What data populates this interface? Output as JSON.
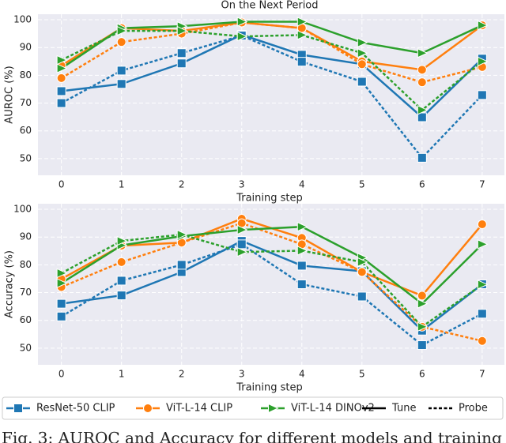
{
  "chart_data": [
    {
      "type": "line",
      "title": "On the Next Period",
      "xlabel": "Training step",
      "ylabel": "AUROC (%)",
      "x": [
        0,
        1,
        2,
        3,
        4,
        5,
        6,
        7
      ],
      "xlim": [
        -0.39,
        7.37
      ],
      "xticks": [
        0,
        1,
        2,
        3,
        4,
        5,
        6,
        7
      ],
      "ylim": [
        44,
        102
      ],
      "yticks": [
        50,
        60,
        70,
        80,
        90,
        100
      ],
      "grid": true,
      "series": [
        {
          "name": "ResNet-50 CLIP",
          "color": "#1f77b4",
          "marker": "square",
          "linestyle": "solid",
          "values": [
            74.3,
            76.9,
            84.3,
            94.6,
            87.4,
            84,
            64.9,
            86
          ]
        },
        {
          "name": "ResNet-50 CLIP",
          "color": "#1f77b4",
          "marker": "square",
          "linestyle": "dashed",
          "values": [
            70,
            81.7,
            88,
            94.3,
            84.9,
            77.7,
            50.3,
            72.9
          ]
        },
        {
          "name": "ViT-L-14 CLIP",
          "color": "#ff7f0e",
          "marker": "circle",
          "linestyle": "solid",
          "values": [
            83.5,
            97,
            96,
            99,
            97,
            85,
            82,
            98
          ]
        },
        {
          "name": "ViT-L-14 CLIP",
          "color": "#ff7f0e",
          "marker": "circle",
          "linestyle": "dashed",
          "values": [
            79,
            92,
            95,
            99,
            97,
            84,
            77.5,
            83
          ]
        },
        {
          "name": "ViT-L-14 DINOv2",
          "color": "#2ca02c",
          "marker": "triangle",
          "linestyle": "solid",
          "values": [
            82.5,
            97,
            97.7,
            99.3,
            99.3,
            91.8,
            88,
            98
          ]
        },
        {
          "name": "ViT-L-14 DINOv2",
          "color": "#2ca02c",
          "marker": "triangle",
          "linestyle": "dashed",
          "values": [
            85.5,
            96,
            96,
            94,
            94.5,
            88,
            67.5,
            85
          ]
        }
      ]
    },
    {
      "type": "line",
      "xlabel": "Training step",
      "ylabel": "Accuracy (%)",
      "x": [
        0,
        1,
        2,
        3,
        4,
        5,
        6,
        7
      ],
      "xlim": [
        -0.39,
        7.37
      ],
      "xticks": [
        0,
        1,
        2,
        3,
        4,
        5,
        6,
        7
      ],
      "ylim": [
        44,
        102
      ],
      "yticks": [
        50,
        60,
        70,
        80,
        90,
        100
      ],
      "grid": true,
      "series": [
        {
          "name": "ResNet-50 CLIP",
          "color": "#1f77b4",
          "marker": "square",
          "linestyle": "solid",
          "values": [
            66,
            69,
            77.4,
            88.6,
            79.7,
            77.7,
            56.3,
            73
          ]
        },
        {
          "name": "ResNet-50 CLIP",
          "color": "#1f77b4",
          "marker": "square",
          "linestyle": "dashed",
          "values": [
            61.4,
            74.3,
            80,
            87.4,
            73,
            68.6,
            51.1,
            62.4
          ]
        },
        {
          "name": "ViT-L-14 CLIP",
          "color": "#ff7f0e",
          "marker": "circle",
          "linestyle": "solid",
          "values": [
            74.9,
            86.9,
            88,
            96.6,
            89.7,
            77.4,
            68.9,
            94.6
          ]
        },
        {
          "name": "ViT-L-14 CLIP",
          "color": "#ff7f0e",
          "marker": "circle",
          "linestyle": "dashed",
          "values": [
            72,
            81,
            88,
            95,
            87.4,
            77.4,
            57.7,
            52.6
          ]
        },
        {
          "name": "ViT-L-14 DINOv2",
          "color": "#2ca02c",
          "marker": "triangle",
          "linestyle": "solid",
          "values": [
            73.4,
            87,
            90.3,
            92.6,
            93.7,
            82.6,
            66,
            87.4
          ]
        },
        {
          "name": "ViT-L-14 DINOv2",
          "color": "#2ca02c",
          "marker": "triangle",
          "linestyle": "dashed",
          "values": [
            77,
            88.6,
            90.9,
            84.6,
            85.1,
            81,
            57.7,
            72.9
          ]
        }
      ]
    }
  ],
  "legend": {
    "styles": [
      {
        "label": "Tune",
        "linestyle": "solid"
      },
      {
        "label": "Probe",
        "linestyle": "dashed"
      }
    ]
  },
  "caption": "Fig. 3: AUROC and Accuracy for different models and training"
}
